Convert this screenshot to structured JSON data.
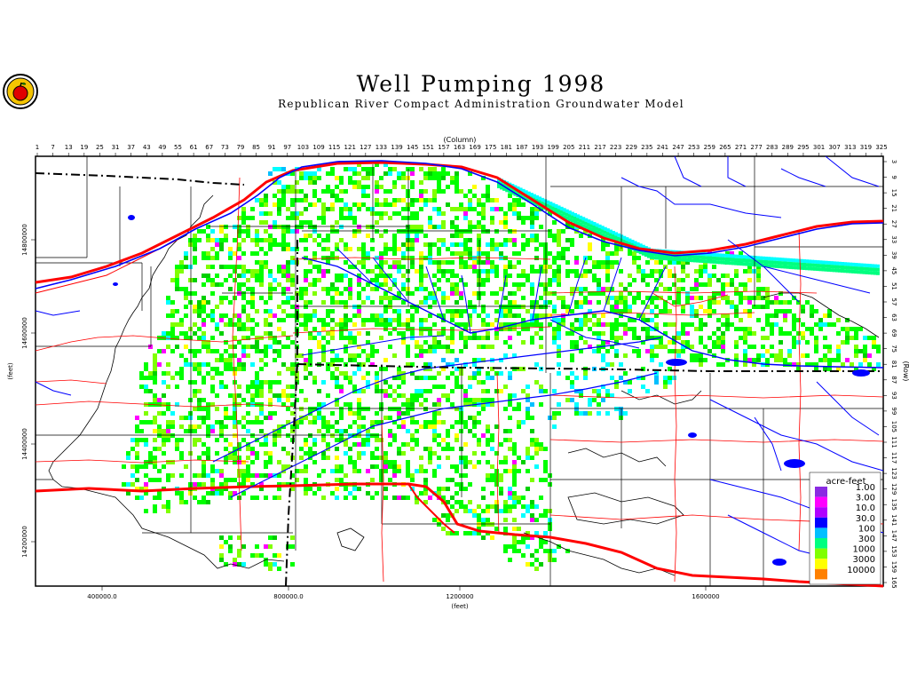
{
  "title": "Well Pumping 1998",
  "subtitle": "Republican River Compact Administration Groundwater Model",
  "logo": {
    "icon": "apple-seal-icon"
  },
  "map": {
    "column_axis_label": "(Column)",
    "row_axis_label": "(Row)",
    "x_axis_label": "(feet)",
    "y_axis_label": "(feet)",
    "column_ticks": [
      "1",
      "7",
      "13",
      "19",
      "25",
      "31",
      "37",
      "43",
      "49",
      "55",
      "61",
      "67",
      "73",
      "79",
      "85",
      "91",
      "97",
      "103",
      "109",
      "115",
      "121",
      "127",
      "133",
      "139",
      "145",
      "151",
      "157",
      "163",
      "169",
      "175",
      "181",
      "187",
      "193",
      "199",
      "205",
      "211",
      "217",
      "223",
      "229",
      "235",
      "241",
      "247",
      "253",
      "259",
      "265",
      "271",
      "277",
      "283",
      "289",
      "295",
      "301",
      "307",
      "313",
      "319",
      "325"
    ],
    "row_ticks": [
      "3",
      "9",
      "15",
      "21",
      "27",
      "33",
      "39",
      "45",
      "51",
      "57",
      "63",
      "69",
      "75",
      "81",
      "87",
      "93",
      "99",
      "105",
      "111",
      "117",
      "123",
      "129",
      "135",
      "141",
      "147",
      "153",
      "159",
      "165"
    ],
    "x_ticks": [
      "400000.0",
      "800000.0",
      "1200000",
      "1600000"
    ],
    "y_ticks": [
      "14800000",
      "14600000",
      "14400000",
      "14200000"
    ],
    "legend": {
      "title": "acre-feet",
      "entries": [
        {
          "label": "1.00",
          "color": "#8a2be2"
        },
        {
          "label": "3.00",
          "color": "#ff00ff"
        },
        {
          "label": "10.0",
          "color": "#b000ff"
        },
        {
          "label": "30.0",
          "color": "#0000ff"
        },
        {
          "label": "100",
          "color": "#00bfff"
        },
        {
          "label": "300",
          "color": "#00ff80"
        },
        {
          "label": "1000",
          "color": "#80ff00"
        },
        {
          "label": "3000",
          "color": "#ffff00"
        },
        {
          "label": "10000",
          "color": "#ff8000"
        }
      ]
    },
    "colors": {
      "rivers": "#0000ff",
      "roads": "#ff0000",
      "boundary": "#000000",
      "pumping_low": "#00ff00",
      "pumping_mid": "#80ff00",
      "pumping_high": "#ffff00",
      "pumping_cyan": "#00ffff"
    }
  }
}
